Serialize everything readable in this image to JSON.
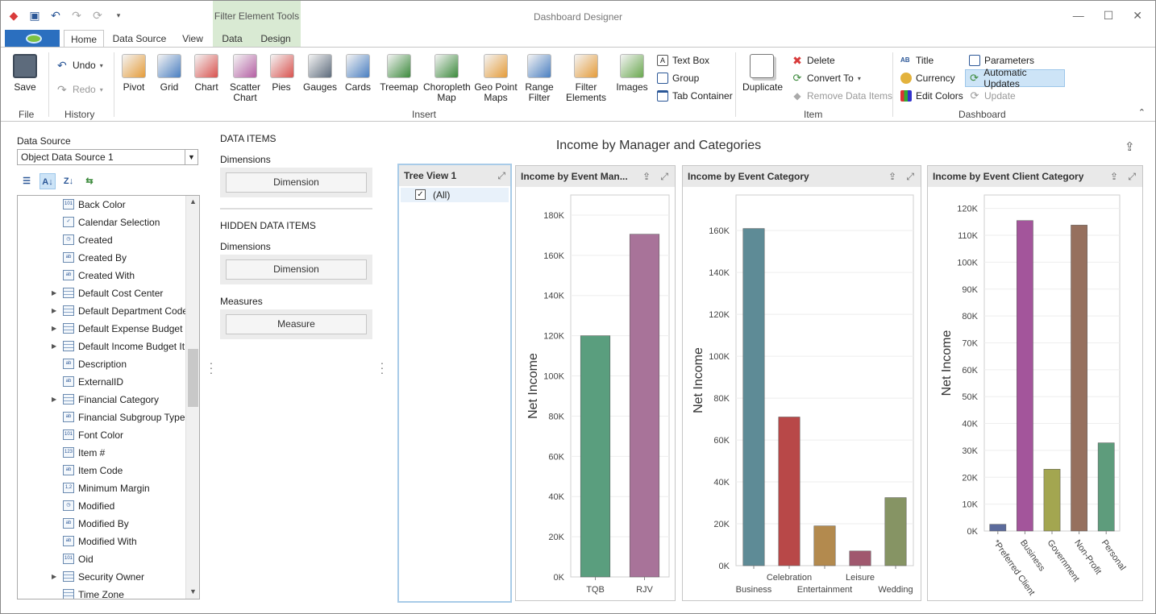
{
  "window": {
    "title": "Dashboard Designer"
  },
  "context_tab_group": "Filter Element Tools",
  "tabs": [
    "Home",
    "Data Source",
    "View",
    "Data",
    "Design"
  ],
  "ribbon": {
    "file": {
      "label": "File",
      "save": "Save"
    },
    "history": {
      "label": "History",
      "undo": "Undo",
      "redo": "Redo"
    },
    "insert": {
      "label": "Insert",
      "buttons": [
        "Pivot",
        "Grid",
        "Chart",
        "Scatter Chart",
        "Pies",
        "Gauges",
        "Cards",
        "Treemap",
        "Choropleth Map",
        "Geo Point Maps",
        "Range Filter",
        "Filter Elements",
        "Images"
      ],
      "small": [
        "Text Box",
        "Group",
        "Tab Container"
      ]
    },
    "item": {
      "label": "Item",
      "duplicate": "Duplicate",
      "small": [
        "Delete",
        "Convert To",
        "Remove Data Items"
      ]
    },
    "dashboard": {
      "label": "Dashboard",
      "small": [
        "Title",
        "Currency",
        "Edit Colors"
      ],
      "small2": [
        "Parameters",
        "Automatic Updates",
        "Update"
      ]
    }
  },
  "datasource": {
    "label": "Data Source",
    "selected": "Object Data Source 1",
    "fields": [
      {
        "name": "Back Color",
        "icon": "number-field-icon",
        "kind": "101"
      },
      {
        "name": "Calendar Selection",
        "icon": "check-field-icon",
        "kind": "✓"
      },
      {
        "name": "Created",
        "icon": "datetime-field-icon",
        "kind": "◷"
      },
      {
        "name": "Created By",
        "icon": "text-field-icon",
        "kind": "ab"
      },
      {
        "name": "Created With",
        "icon": "text-field-icon",
        "kind": "ab"
      },
      {
        "name": "Default Cost Center",
        "icon": "table-field-icon",
        "kind": "tbl",
        "expand": true
      },
      {
        "name": "Default Department Code",
        "icon": "table-field-icon",
        "kind": "tbl",
        "expand": true
      },
      {
        "name": "Default Expense Budget ...",
        "icon": "table-field-icon",
        "kind": "tbl",
        "expand": true
      },
      {
        "name": "Default Income Budget It...",
        "icon": "table-field-icon",
        "kind": "tbl",
        "expand": true
      },
      {
        "name": "Description",
        "icon": "text-field-icon",
        "kind": "ab"
      },
      {
        "name": "ExternalID",
        "icon": "text-field-icon",
        "kind": "ab"
      },
      {
        "name": "Financial Category",
        "icon": "table-field-icon",
        "kind": "tbl",
        "expand": true
      },
      {
        "name": "Financial Subgroup Type",
        "icon": "text-field-icon",
        "kind": "ab"
      },
      {
        "name": "Font Color",
        "icon": "number-field-icon",
        "kind": "101"
      },
      {
        "name": "Item #",
        "icon": "number-field-icon",
        "kind": "123"
      },
      {
        "name": "Item Code",
        "icon": "text-field-icon",
        "kind": "ab"
      },
      {
        "name": "Minimum Margin",
        "icon": "decimal-field-icon",
        "kind": "1,2"
      },
      {
        "name": "Modified",
        "icon": "datetime-field-icon",
        "kind": "◷"
      },
      {
        "name": "Modified By",
        "icon": "text-field-icon",
        "kind": "ab"
      },
      {
        "name": "Modified With",
        "icon": "text-field-icon",
        "kind": "ab"
      },
      {
        "name": "Oid",
        "icon": "number-field-icon",
        "kind": "101"
      },
      {
        "name": "Security Owner",
        "icon": "table-field-icon",
        "kind": "tbl",
        "expand": true
      },
      {
        "name": "Time Zone",
        "icon": "table-field-icon",
        "kind": "tbl"
      }
    ]
  },
  "data_items": {
    "header": "DATA ITEMS",
    "dimensions_label": "Dimensions",
    "dimension_button": "Dimension",
    "hidden_header": "HIDDEN DATA ITEMS",
    "hidden_dimensions_label": "Dimensions",
    "hidden_dimension_button": "Dimension",
    "measures_label": "Measures",
    "measure_button": "Measure"
  },
  "dashboard": {
    "title": "Income by Manager and Categories",
    "tree_view": {
      "title": "Tree View 1",
      "item": "(All)",
      "checked": true
    }
  },
  "chart_data": [
    {
      "type": "bar",
      "title": "Income by Event Man...",
      "ylabel": "Net Income",
      "categories": [
        "TQB",
        "RJV"
      ],
      "values": [
        120000,
        170500
      ],
      "colors": [
        "#5a9e7e",
        "#a87399"
      ],
      "ylim": [
        0,
        190000
      ],
      "yticks": [
        "0K",
        "20K",
        "40K",
        "60K",
        "80K",
        "100K",
        "120K",
        "140K",
        "160K",
        "180K"
      ]
    },
    {
      "type": "bar",
      "title": "Income by Event Category",
      "ylabel": "Net Income",
      "categories": [
        "Business",
        "Celebration",
        "Entertainment",
        "Leisure",
        "Wedding"
      ],
      "values": [
        161000,
        71000,
        19000,
        7000,
        32500
      ],
      "colors": [
        "#5e8b96",
        "#b84848",
        "#b38a4e",
        "#a0586e",
        "#869464"
      ],
      "ylim": [
        0,
        177000
      ],
      "yticks": [
        "0K",
        "20K",
        "40K",
        "60K",
        "80K",
        "100K",
        "120K",
        "140K",
        "160K"
      ]
    },
    {
      "type": "bar",
      "title": "Income by Event Client Category",
      "ylabel": "Net Income",
      "categories": [
        "*Preferred Client",
        "Business",
        "Government",
        "Non-Profit",
        "Personal"
      ],
      "values": [
        2500,
        115500,
        23000,
        113800,
        32800
      ],
      "colors": [
        "#5c6b9c",
        "#a3559b",
        "#a3a650",
        "#96705e",
        "#5e9c7c"
      ],
      "ylim": [
        0,
        125000
      ],
      "yticks": [
        "0K",
        "10K",
        "20K",
        "30K",
        "40K",
        "50K",
        "60K",
        "70K",
        "80K",
        "90K",
        "100K",
        "110K",
        "120K"
      ]
    }
  ]
}
